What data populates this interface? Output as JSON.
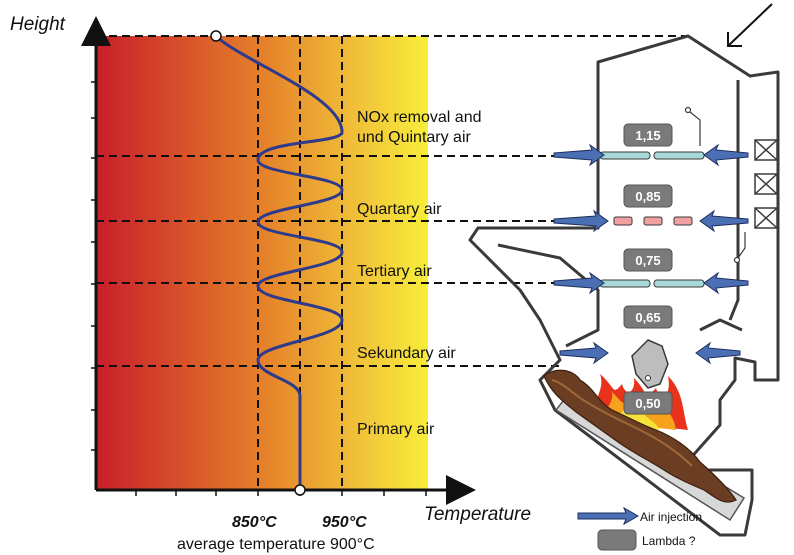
{
  "axes": {
    "y_title": "Height",
    "x_title": "Temperature",
    "tick_850": "850°C",
    "tick_950": "950°C",
    "average": "average temperature 900°C"
  },
  "zones": [
    {
      "line1": "NOx removal and",
      "line2": "und Quintary air"
    },
    {
      "line1": "Quartary air"
    },
    {
      "line1": "Tertiary air"
    },
    {
      "line1": "Sekundary air"
    },
    {
      "line1": "Primary air"
    }
  ],
  "lambda_values": [
    "1,15",
    "0,85",
    "0,75",
    "0,65",
    "0,50"
  ],
  "legend": {
    "air_injection": "Air injection",
    "lambda": "Lambda ?"
  },
  "colors": {
    "gradient_start": "#c81e2a",
    "gradient_mid": "#e57a2a",
    "gradient_end": "#f7ee3a",
    "curve": "#2e3a8c",
    "arrow": "#4a6fb5",
    "lambda_box": "#7a7a7a",
    "boiler_wall": "#3a3a3a"
  }
}
